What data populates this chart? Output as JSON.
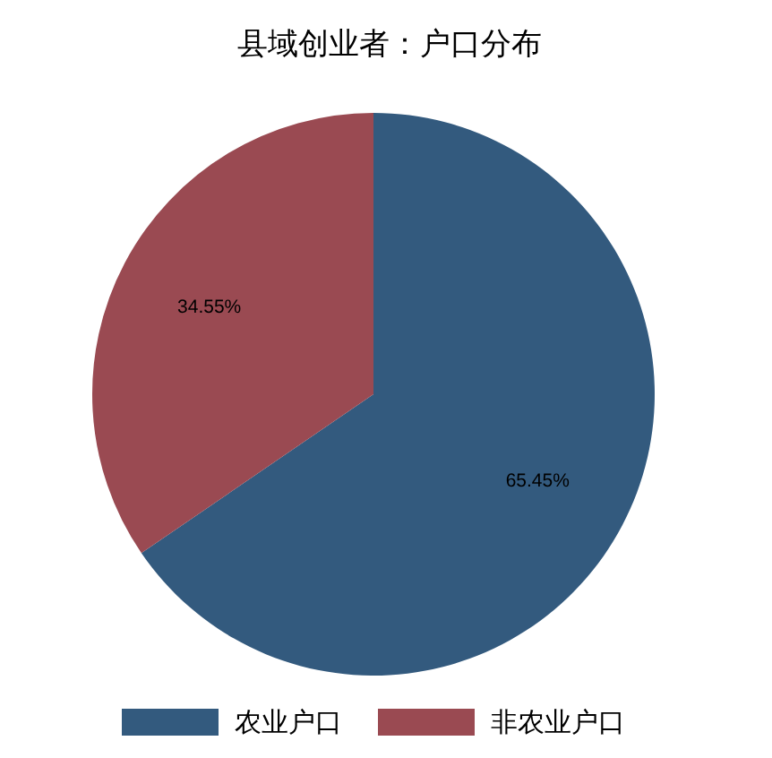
{
  "chart_data": {
    "type": "pie",
    "title": "县域创业者：户口分布",
    "categories": [
      "农业户口",
      "非农业户口"
    ],
    "values": [
      65.45,
      34.55
    ],
    "colors": [
      "#335a7e",
      "#9a4a52"
    ],
    "value_labels": [
      "65.45%",
      "34.55%"
    ],
    "legend": "bottom"
  }
}
